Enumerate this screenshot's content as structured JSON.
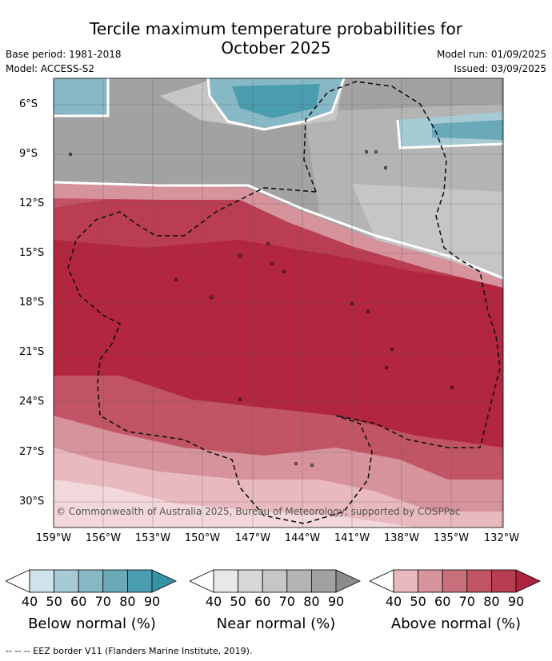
{
  "title_line1": "Tercile maximum temperature probabilities for",
  "title_line2": "October 2025",
  "base_period": "Base period: 1981-2018",
  "model": "Model: ACCESS-S2",
  "model_run": "Model run: 01/09/2025",
  "issued": "Issued: 03/09/2025",
  "credit": "© Commonwealth of Australia 2025, Bureau of Meteorology, supported by COSPPac",
  "lat_labels": [
    "6°S",
    "9°S",
    "12°S",
    "15°S",
    "18°S",
    "21°S",
    "24°S",
    "27°S",
    "30°S"
  ],
  "lon_labels": [
    "159°W",
    "156°W",
    "153°W",
    "150°W",
    "147°W",
    "144°W",
    "141°W",
    "138°W",
    "135°W",
    "132°W"
  ],
  "legends": [
    {
      "title": "Below normal (%)",
      "ticks": [
        "40",
        "50",
        "60",
        "70",
        "80",
        "90"
      ],
      "colors": [
        "#ffffff",
        "#cfe3ea",
        "#a6cbd5",
        "#87b8c5",
        "#6aaab8",
        "#4a9dae",
        "#3592a5"
      ]
    },
    {
      "title": "Near normal (%)",
      "ticks": [
        "40",
        "50",
        "60",
        "70",
        "80",
        "90"
      ],
      "colors": [
        "#ffffff",
        "#e8e8e8",
        "#d7d7d7",
        "#c6c6c6",
        "#b4b4b4",
        "#a2a2a2",
        "#8c8c8c"
      ]
    },
    {
      "title": "Above normal (%)",
      "ticks": [
        "40",
        "50",
        "60",
        "70",
        "80",
        "90"
      ],
      "colors": [
        "#ffffff",
        "#e8b9bf",
        "#d6939c",
        "#c9707d",
        "#c15565",
        "#b83d52",
        "#ad2340"
      ]
    }
  ],
  "footnote": "--  --  -- EEZ border V11 (Flanders Marine Institute, 2019)."
}
